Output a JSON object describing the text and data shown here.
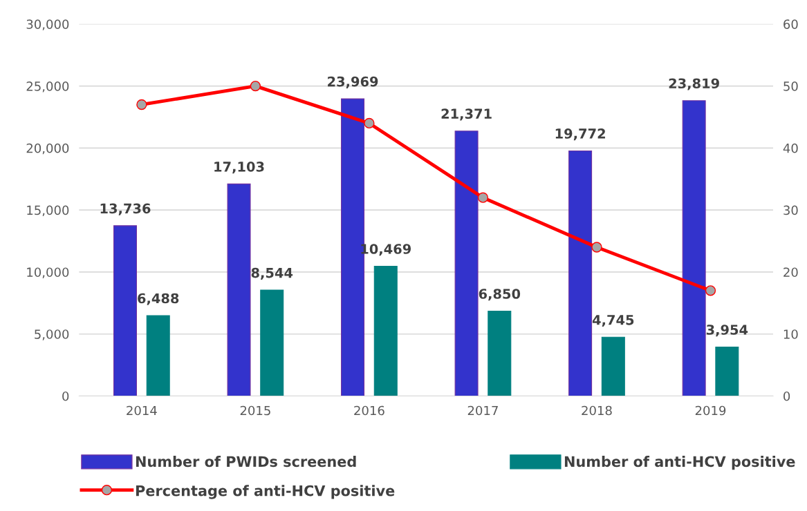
{
  "chart_data": {
    "type": "bar",
    "categories": [
      "2014",
      "2015",
      "2016",
      "2017",
      "2018",
      "2019"
    ],
    "series": [
      {
        "name": "Number of PWIDs screened",
        "color": "#3333cc",
        "values": [
          13736,
          17103,
          23969,
          21371,
          19772,
          23819
        ],
        "value_labels": [
          "13,736",
          "17,103",
          "23,969",
          "21,371",
          "19,772",
          "23,819"
        ]
      },
      {
        "name": "Number of anti-HCV positive",
        "color": "#008080",
        "values": [
          6488,
          8544,
          10469,
          6850,
          4745,
          3954
        ],
        "value_labels": [
          "6,488",
          "8,544",
          "10,469",
          "6,850",
          "4,745",
          "3,954"
        ]
      },
      {
        "name": "Percentage of anti-HCV positive",
        "type": "line",
        "axis": "y2",
        "color": "#ff0000",
        "marker": "circle",
        "values": [
          47,
          50,
          44,
          32,
          24,
          17
        ]
      }
    ],
    "ylim": [
      0,
      30000
    ],
    "yticks": [
      {
        "value": 0,
        "label": "0"
      },
      {
        "value": 5000,
        "label": "5,000"
      },
      {
        "value": 10000,
        "label": "10,000"
      },
      {
        "value": 15000,
        "label": "15,000"
      },
      {
        "value": 20000,
        "label": "20,000"
      },
      {
        "value": 25000,
        "label": "25,000"
      },
      {
        "value": 30000,
        "label": "30,000"
      }
    ],
    "y2lim": [
      0,
      60
    ],
    "y2ticks": [
      0,
      10,
      20,
      30,
      40,
      50,
      60
    ],
    "grid": "y",
    "legend": "bottom"
  }
}
